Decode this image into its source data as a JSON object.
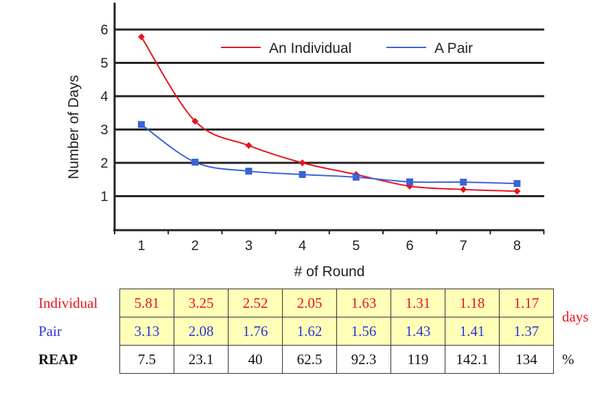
{
  "chart_data": {
    "type": "line",
    "xlabel": "# of Round",
    "ylabel": "Number of Days",
    "x": [
      1,
      2,
      3,
      4,
      5,
      6,
      7,
      8
    ],
    "xlim": [
      0.5,
      8.5
    ],
    "ylim": [
      0,
      6.7
    ],
    "yticks": [
      1,
      2,
      3,
      4,
      5,
      6
    ],
    "grid": "horizontal",
    "legend": "top-right",
    "series": [
      {
        "name": "An Individual",
        "color": "#e8141e",
        "marker": "diamond",
        "values": [
          5.78,
          3.25,
          2.52,
          2.0,
          1.65,
          1.3,
          1.2,
          1.15
        ]
      },
      {
        "name": "A Pair",
        "color": "#3a63d8",
        "marker": "square",
        "values": [
          3.15,
          2.02,
          1.75,
          1.65,
          1.57,
          1.43,
          1.42,
          1.38
        ]
      }
    ]
  },
  "table": {
    "rows": [
      {
        "label": "Individual",
        "values": [
          "5.81",
          "3.25",
          "2.52",
          "2.05",
          "1.63",
          "1.31",
          "1.18",
          "1.17"
        ]
      },
      {
        "label": "Pair",
        "values": [
          "3.13",
          "2.08",
          "1.76",
          "1.62",
          "1.56",
          "1.43",
          "1.41",
          "1.37"
        ]
      },
      {
        "label": "REAP",
        "values": [
          "7.5",
          "23.1",
          "40",
          "62.5",
          "92.3",
          "119",
          "142.1",
          "134"
        ]
      }
    ],
    "unit_days": "days",
    "unit_percent": "%"
  }
}
